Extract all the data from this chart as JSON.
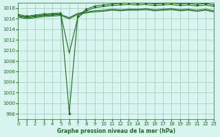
{
  "title": "Graphe pression niveau de la mer (hPa)",
  "background_color": "#d8f5f0",
  "grid_color": "#a0c8c0",
  "line_color": "#1a6b1a",
  "marker_color": "#1a6b1a",
  "xlim": [
    0,
    23
  ],
  "ylim": [
    997,
    1019
  ],
  "yticks": [
    998,
    1000,
    1002,
    1004,
    1006,
    1008,
    1010,
    1012,
    1014,
    1016,
    1018
  ],
  "xticks": [
    0,
    1,
    2,
    3,
    4,
    5,
    6,
    7,
    8,
    9,
    10,
    11,
    12,
    13,
    14,
    15,
    16,
    17,
    18,
    19,
    20,
    21,
    22,
    23
  ],
  "line1_x": [
    0,
    1,
    2,
    3,
    4,
    5,
    6,
    7,
    8,
    9,
    10,
    11,
    12,
    13,
    14,
    15,
    16,
    17,
    18,
    19,
    20,
    21,
    22,
    23
  ],
  "line1_y": [
    1016.5,
    1016.2,
    1016.4,
    1016.6,
    1016.7,
    1016.8,
    1016.2,
    1017.0,
    1017.3,
    1017.5,
    1017.6,
    1017.8,
    1017.7,
    1017.8,
    1017.8,
    1017.9,
    1017.7,
    1017.8,
    1017.9,
    1017.7,
    1017.8,
    1017.6,
    1017.8,
    1017.5
  ],
  "line2_x": [
    0,
    1,
    2,
    3,
    4,
    5,
    6,
    7,
    8,
    9,
    10,
    11,
    12,
    13,
    14,
    15,
    16,
    17,
    18,
    19,
    20,
    21,
    22,
    23
  ],
  "line2_y": [
    1016.8,
    1016.5,
    1016.7,
    1016.9,
    1017.0,
    1017.1,
    998.2,
    1016.5,
    1017.8,
    1018.4,
    1018.6,
    1018.8,
    1018.9,
    1019.0,
    1018.9,
    1019.0,
    1018.8,
    1018.9,
    1019.0,
    1018.8,
    1018.9,
    1018.7,
    1018.9,
    1018.6
  ],
  "line3_x": [
    0,
    1,
    2,
    3,
    4,
    5,
    6,
    7,
    8,
    9,
    10,
    11,
    12,
    13,
    14,
    15,
    16,
    17,
    18,
    19,
    20,
    21,
    22,
    23
  ],
  "line3_y": [
    1016.3,
    1016.0,
    1016.2,
    1016.4,
    1016.5,
    1016.6,
    1016.0,
    1016.8,
    1017.1,
    1017.3,
    1017.4,
    1017.6,
    1017.5,
    1017.6,
    1017.6,
    1017.7,
    1017.5,
    1017.6,
    1017.7,
    1017.5,
    1017.6,
    1017.4,
    1017.6,
    1017.3
  ],
  "line4_x": [
    0,
    1,
    2,
    3,
    4,
    5,
    6,
    7,
    8,
    9,
    10,
    11,
    12,
    13,
    14,
    15,
    16,
    17,
    18,
    19,
    20,
    21,
    22,
    23
  ],
  "line4_y": [
    1016.6,
    1016.3,
    1016.5,
    1016.7,
    1016.8,
    1016.9,
    1009.5,
    1016.2,
    1017.5,
    1018.1,
    1018.3,
    1018.5,
    1018.6,
    1018.7,
    1018.6,
    1018.7,
    1018.5,
    1018.6,
    1018.7,
    1018.5,
    1018.6,
    1018.4,
    1018.6,
    1018.3
  ]
}
